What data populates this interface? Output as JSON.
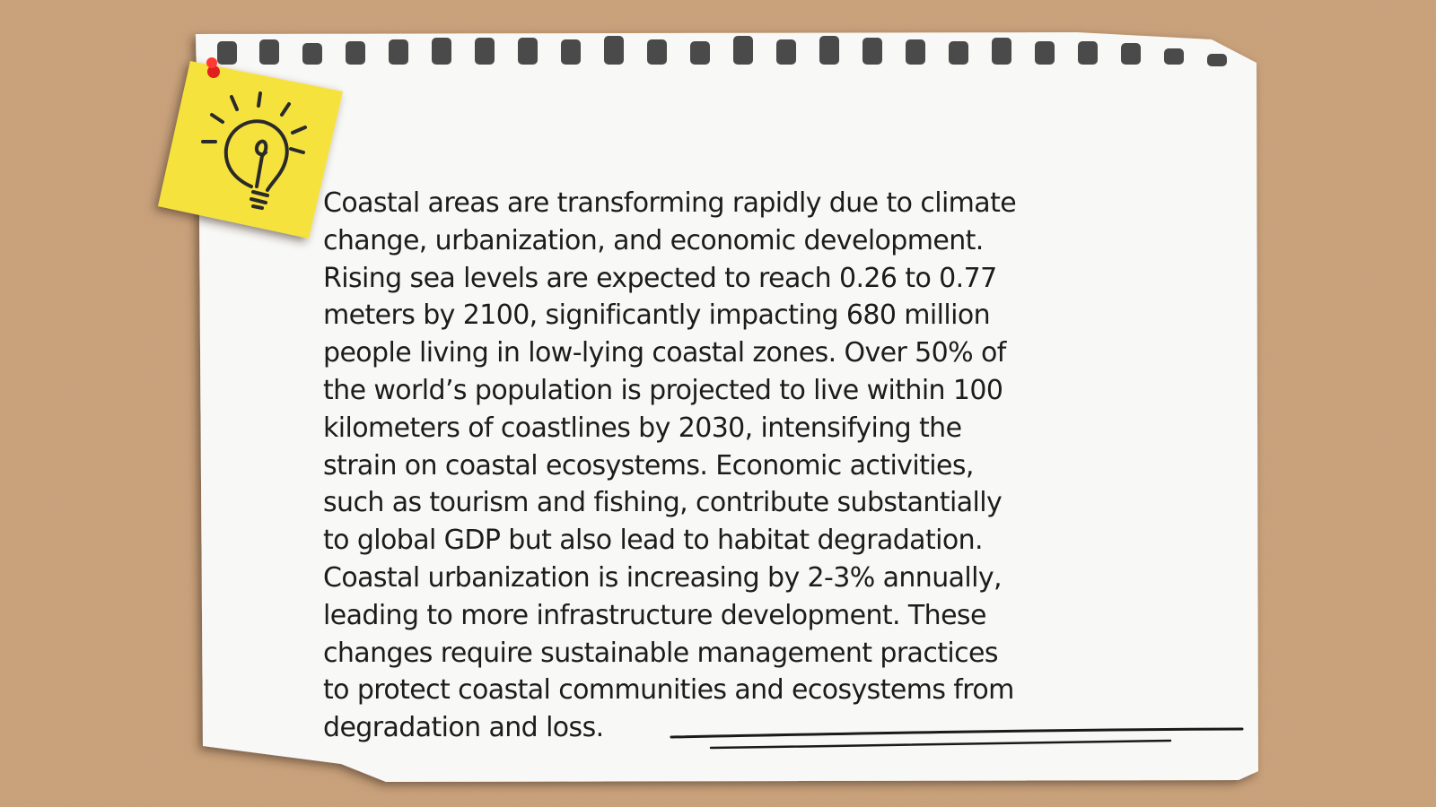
{
  "paragraph": {
    "lines": [
      "Coastal areas are transforming rapidly due to climate",
      "change, urbanization, and economic development.",
      "Rising sea levels are expected to reach 0.26 to 0.77",
      "meters by 2100, significantly impacting 680 million",
      "people living in low-lying coastal zones. Over 50% of",
      "the world’s population is projected to live within 100",
      "kilometers of coastlines by 2030, intensifying the",
      "strain on coastal ecosystems. Economic activities,",
      "such as tourism and fishing, contribute substantially",
      "to global GDP but also lead to habitat degradation.",
      "Coastal urbanization is increasing by 2-3% annually,",
      "leading to more infrastructure development. These",
      "changes require sustainable management practices",
      "to protect coastal communities and ecosystems from",
      "degradation and loss."
    ]
  }
}
